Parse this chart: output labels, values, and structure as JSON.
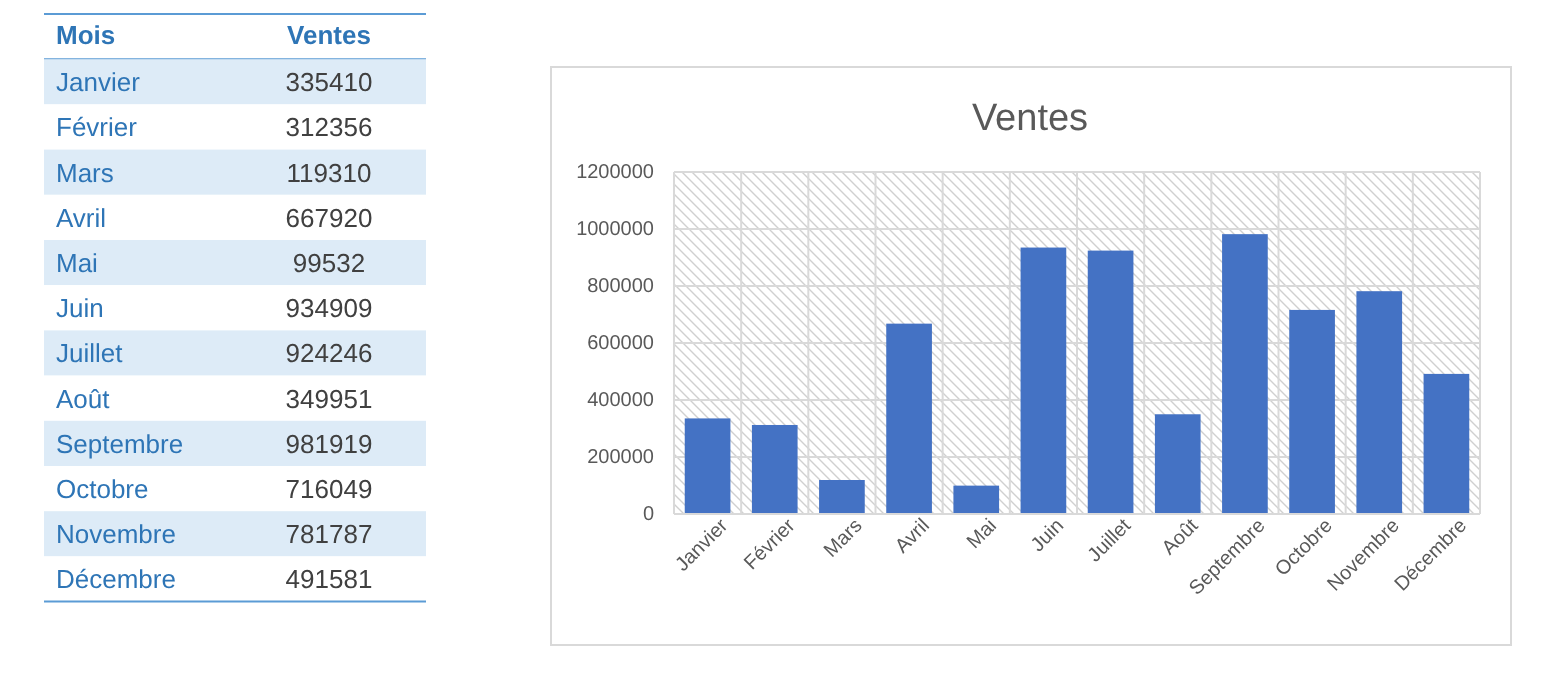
{
  "chart_data": [
    {
      "type": "heatmap",
      "annotations": [
        "Mois"
      ],
      "categories": [
        "Ventes"
      ],
      "data_labels": true,
      "y_categories": [
        "Janvier",
        "Février",
        "Mars",
        "Avril",
        "Mai",
        "Juin",
        "Juillet",
        "Août",
        "Septembre",
        "Octobre",
        "Novembre",
        "Décembre"
      ],
      "cells": [
        [
          335410
        ],
        [
          312356
        ],
        [
          119310
        ],
        [
          667920
        ],
        [
          99532
        ],
        [
          934909
        ],
        [
          924246
        ],
        [
          349951
        ],
        [
          981919
        ],
        [
          716049
        ],
        [
          781787
        ],
        [
          491581
        ]
      ]
    },
    {
      "type": "bar",
      "title": "Ventes",
      "categories": [
        "Janvier",
        "Février",
        "Mars",
        "Avril",
        "Mai",
        "Juin",
        "Juillet",
        "Août",
        "Septembre",
        "Octobre",
        "Novembre",
        "Décembre"
      ],
      "values": [
        335410,
        312356,
        119310,
        667920,
        99532,
        934909,
        924246,
        349951,
        981919,
        716049,
        781787,
        491581
      ],
      "color": "#4472c4",
      "ylim": [
        0,
        1200000
      ],
      "yticks": [
        0,
        200000,
        400000,
        600000,
        800000,
        1000000,
        1200000
      ],
      "grid": true
    }
  ]
}
